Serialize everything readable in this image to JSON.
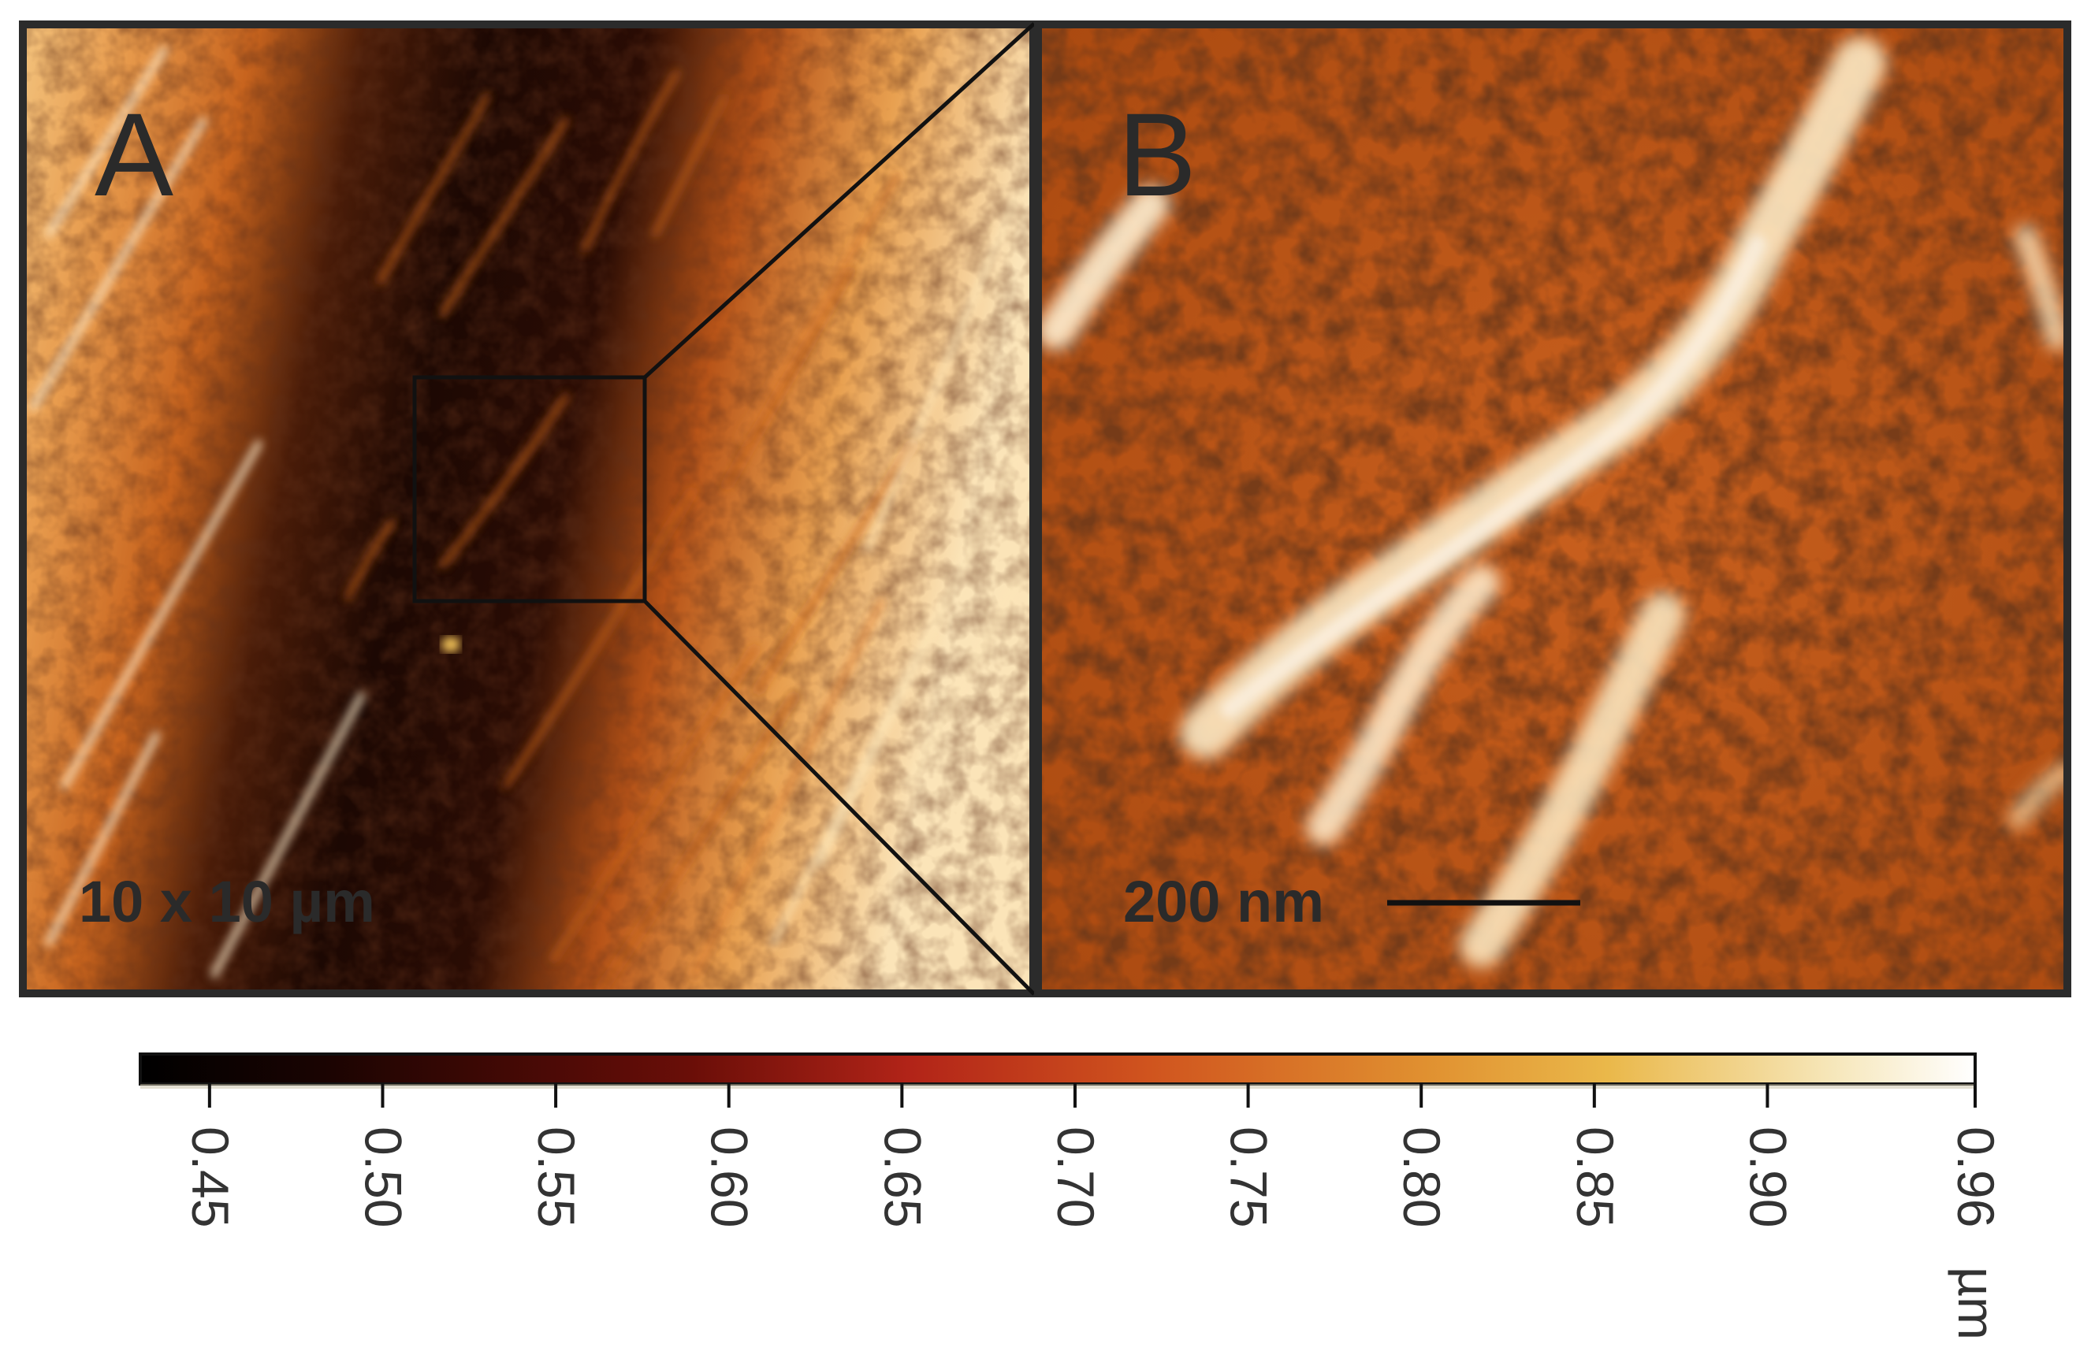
{
  "panels": {
    "a": {
      "label": "A",
      "scale_text": "10 x 10 µm"
    },
    "b": {
      "label": "B",
      "scalebar_text": "200 nm"
    }
  },
  "colorbar": {
    "unit": "µm",
    "ticks": [
      "0.45",
      "0.50",
      "0.55",
      "0.60",
      "0.65",
      "0.70",
      "0.75",
      "0.80",
      "0.85",
      "0.90",
      "0.96"
    ],
    "colors": {
      "low": "#000000",
      "mid": "#c8401a",
      "high_warm": "#f0b040",
      "top": "#ffffff"
    }
  }
}
